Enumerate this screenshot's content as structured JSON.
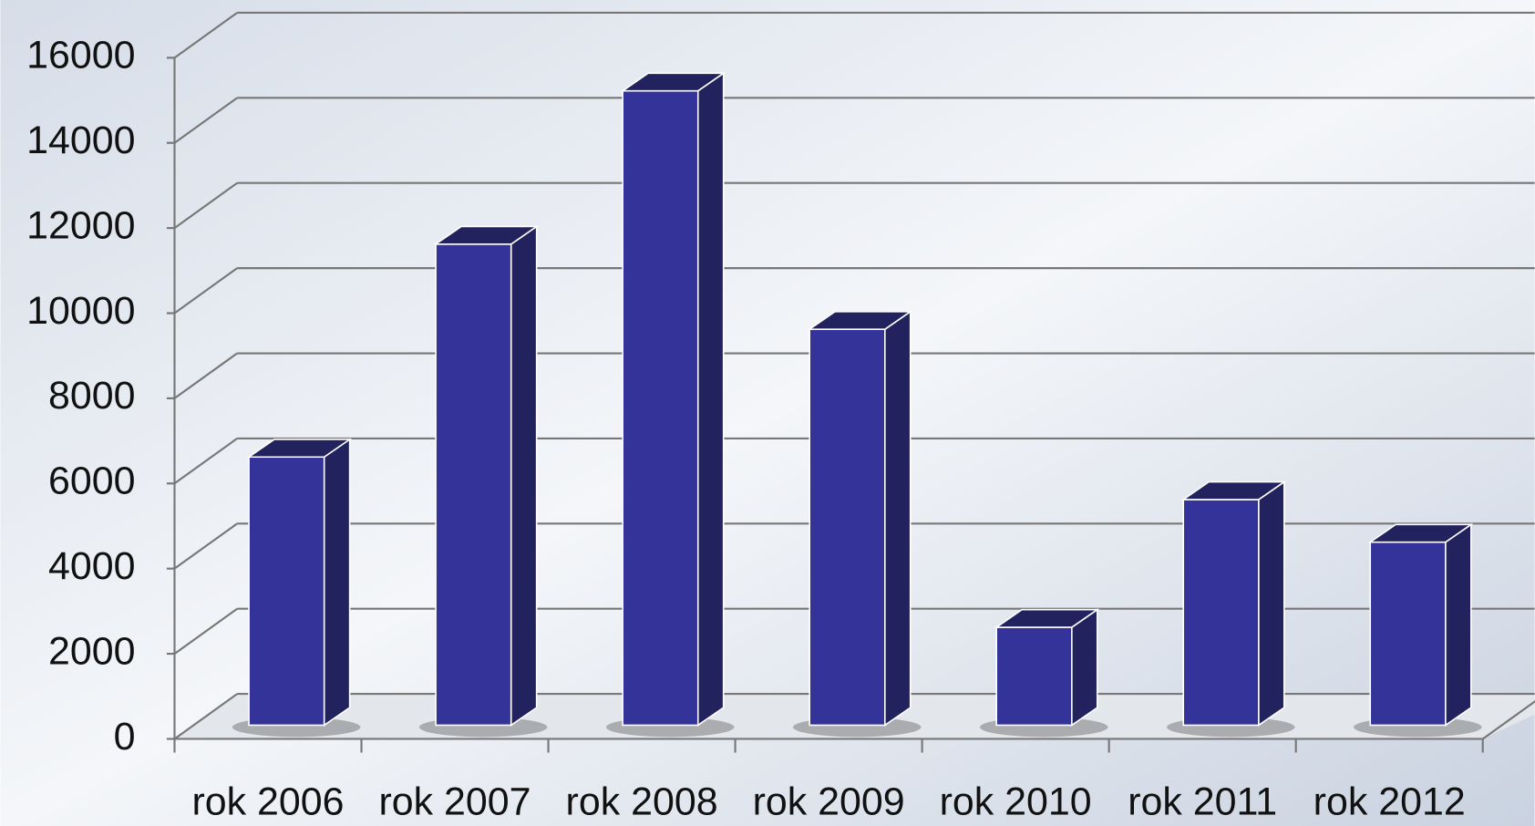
{
  "chart_data": {
    "type": "bar3d",
    "categories": [
      "rok 2006",
      "rok 2007",
      "rok 2008",
      "rok 2009",
      "rok 2010",
      "rok 2011",
      "rok 2012"
    ],
    "values": [
      6300,
      11300,
      14900,
      9300,
      2300,
      5300,
      4300
    ],
    "color": "#333399",
    "side_color": "#22225e",
    "ylim": [
      0,
      16000
    ],
    "yticks": [
      0,
      2000,
      4000,
      6000,
      8000,
      10000,
      12000,
      14000,
      16000
    ],
    "grid": true
  }
}
